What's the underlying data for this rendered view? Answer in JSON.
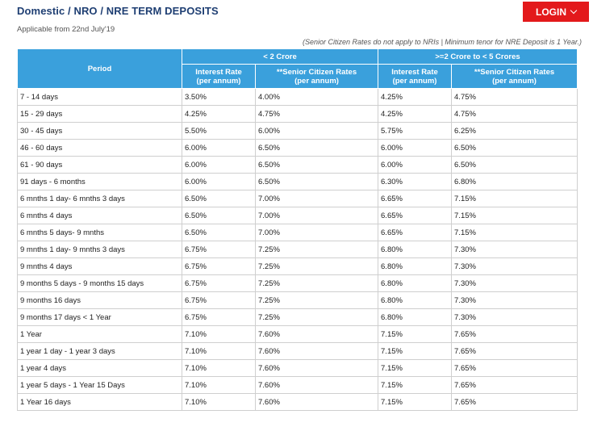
{
  "header": {
    "title": "Domestic / NRO / NRE TERM DEPOSITS",
    "login_label": "LOGIN",
    "applicable": "Applicable from 22nd July'19",
    "note": "(Senior Citizen Rates do not apply to NRIs | Minimum tenor for NRE Deposit is 1 Year.)"
  },
  "table": {
    "period_header": "Period",
    "bands": [
      "< 2 Crore",
      ">=2 Crore to < 5 Crores"
    ],
    "sub_headers": [
      [
        "Interest Rate",
        "(per annum)"
      ],
      [
        "**Senior Citizen Rates",
        "(per annum)"
      ],
      [
        "Interest Rate",
        "(per annum)"
      ],
      [
        "**Senior Citizen Rates",
        "(per annum)"
      ]
    ],
    "rows": [
      [
        "7 - 14 days",
        "3.50%",
        "4.00%",
        "4.25%",
        "4.75%"
      ],
      [
        "15 - 29 days",
        "4.25%",
        "4.75%",
        "4.25%",
        "4.75%"
      ],
      [
        "30 - 45 days",
        "5.50%",
        "6.00%",
        "5.75%",
        "6.25%"
      ],
      [
        "46 - 60 days",
        "6.00%",
        "6.50%",
        "6.00%",
        "6.50%"
      ],
      [
        "61 - 90 days",
        "6.00%",
        "6.50%",
        "6.00%",
        "6.50%"
      ],
      [
        "91 days - 6 months",
        "6.00%",
        "6.50%",
        "6.30%",
        "6.80%"
      ],
      [
        "6 mnths 1 day- 6 mnths 3 days",
        "6.50%",
        "7.00%",
        "6.65%",
        "7.15%"
      ],
      [
        "6 mnths 4 days",
        "6.50%",
        "7.00%",
        "6.65%",
        "7.15%"
      ],
      [
        "6 mnths 5 days- 9 mnths",
        "6.50%",
        "7.00%",
        "6.65%",
        "7.15%"
      ],
      [
        "9 mnths 1 day- 9 mnths 3 days",
        "6.75%",
        "7.25%",
        "6.80%",
        "7.30%"
      ],
      [
        "9 mnths 4 days",
        "6.75%",
        "7.25%",
        "6.80%",
        "7.30%"
      ],
      [
        "9 months 5 days - 9 months 15 days",
        "6.75%",
        "7.25%",
        "6.80%",
        "7.30%"
      ],
      [
        "9 months 16 days",
        "6.75%",
        "7.25%",
        "6.80%",
        "7.30%"
      ],
      [
        "9 months 17 days < 1 Year",
        "6.75%",
        "7.25%",
        "6.80%",
        "7.30%"
      ],
      [
        "1 Year",
        "7.10%",
        "7.60%",
        "7.15%",
        "7.65%"
      ],
      [
        "1 year 1 day - 1 year 3 days",
        "7.10%",
        "7.60%",
        "7.15%",
        "7.65%"
      ],
      [
        "1 year 4 days",
        "7.10%",
        "7.60%",
        "7.15%",
        "7.65%"
      ],
      [
        "1 year 5 days - 1 Year 15 Days",
        "7.10%",
        "7.60%",
        "7.15%",
        "7.65%"
      ],
      [
        "1 Year 16 days",
        "7.10%",
        "7.60%",
        "7.15%",
        "7.65%"
      ]
    ]
  },
  "colors": {
    "header_blue": "#3aa0dc",
    "title_navy": "#1f3f73",
    "login_red": "#e3191b"
  },
  "icons": {
    "login": "chevron-down-icon"
  }
}
